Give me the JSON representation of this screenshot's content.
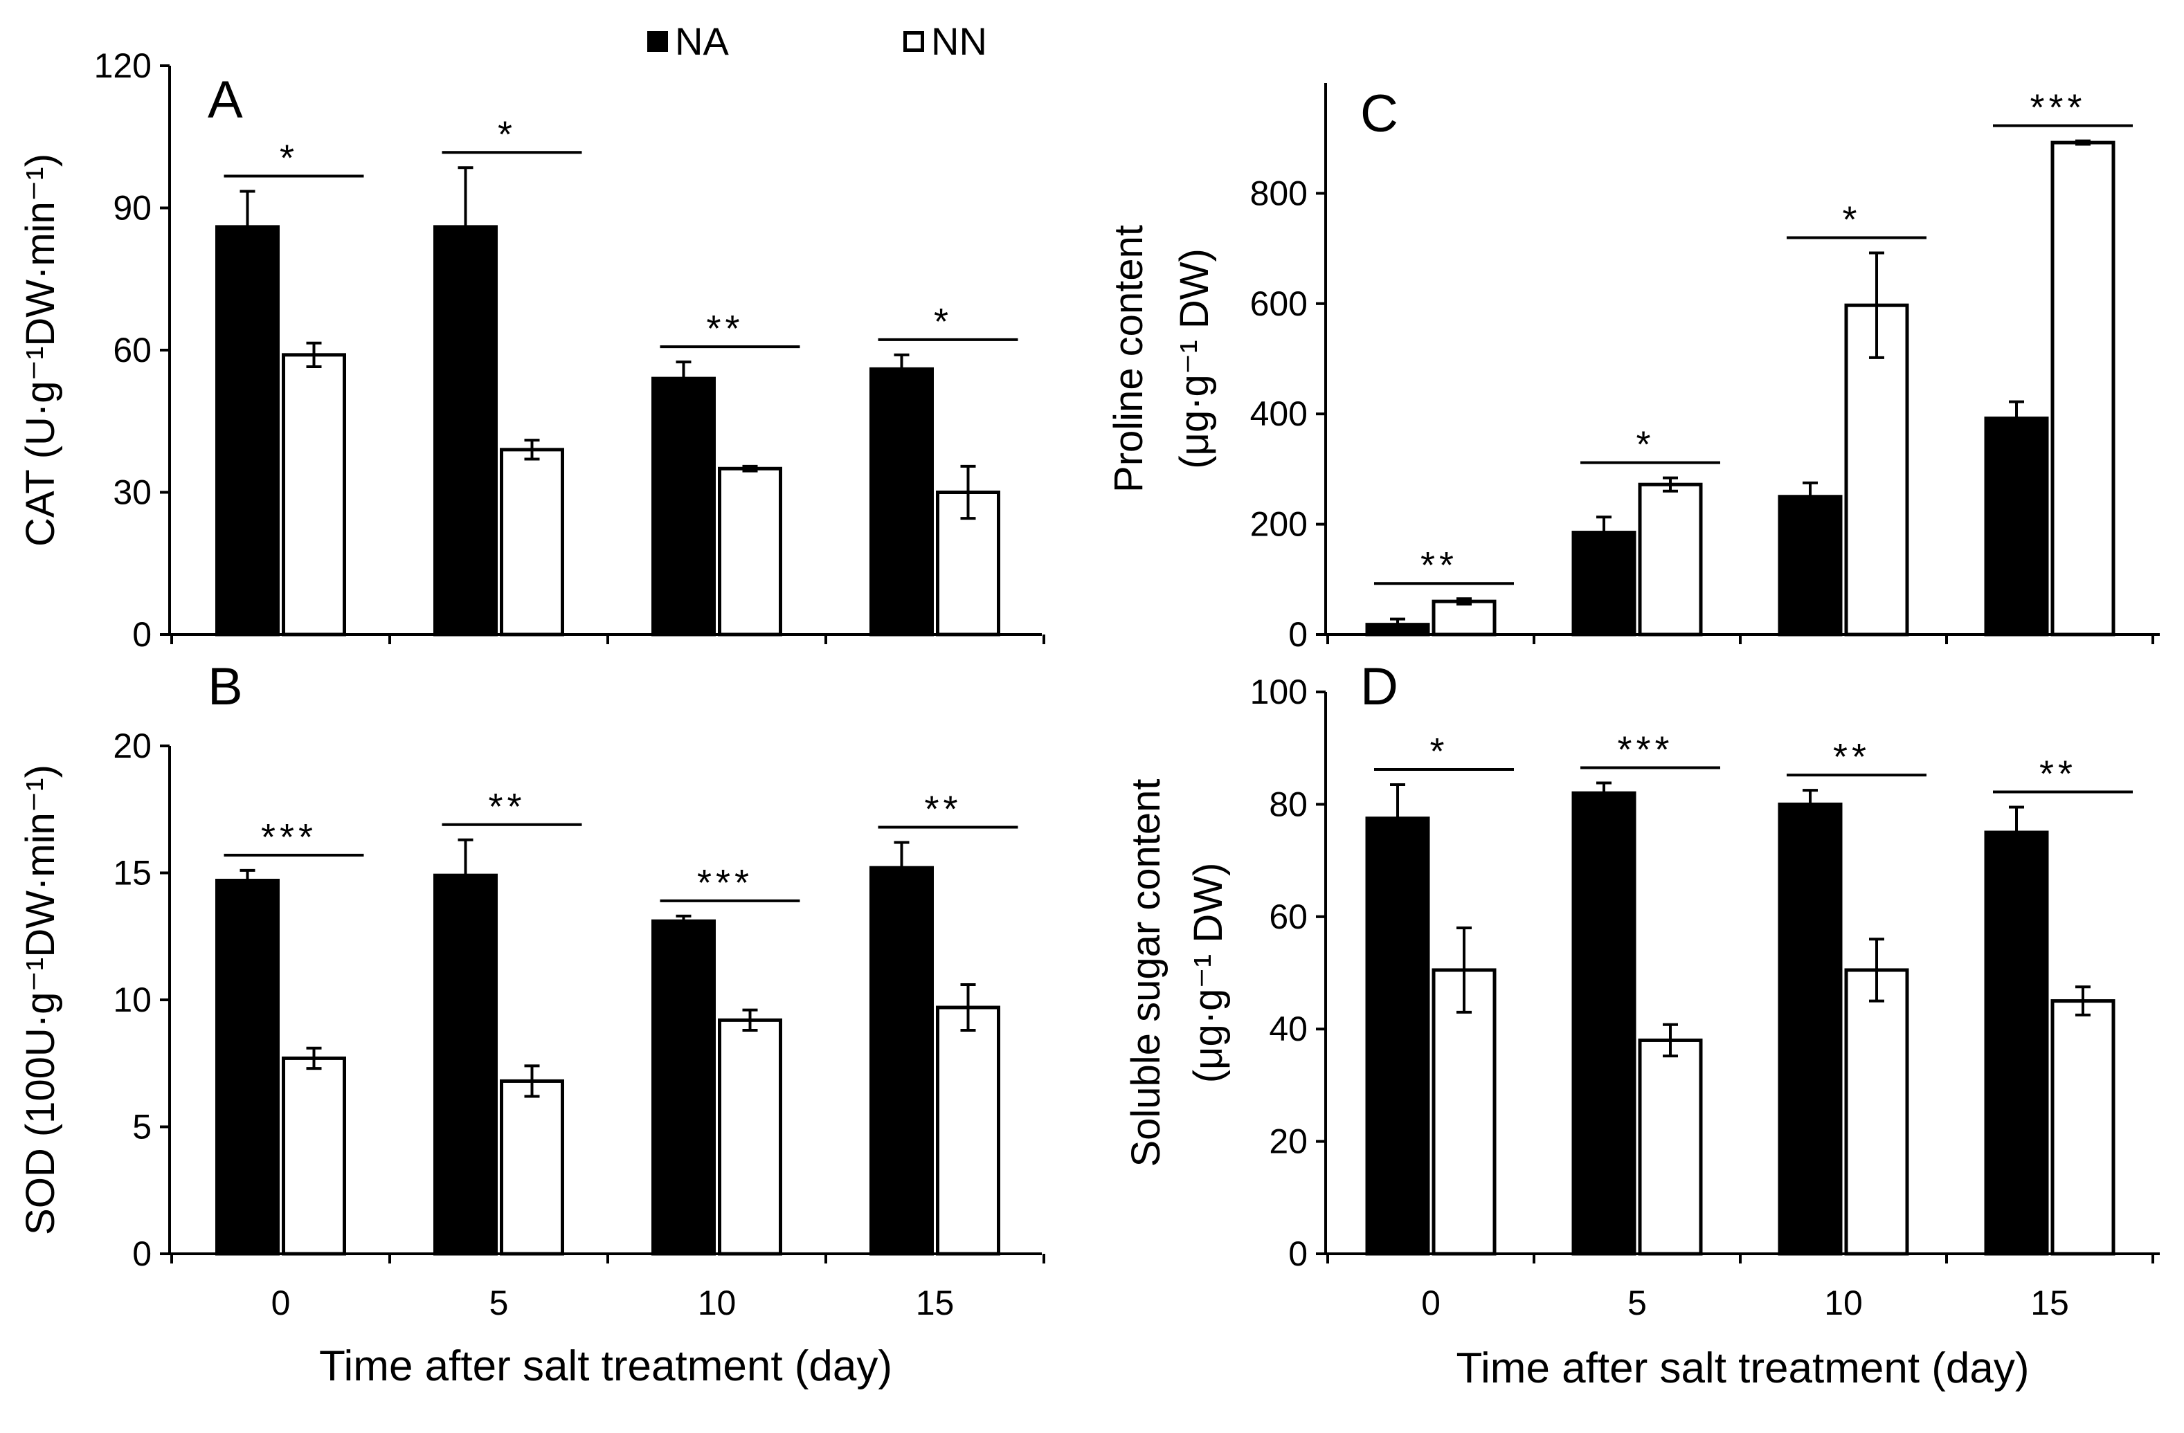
{
  "legend": {
    "items": [
      {
        "label": "NA",
        "fill": "#000000"
      },
      {
        "label": "NN",
        "fill": "#ffffff"
      }
    ]
  },
  "colors": {
    "NA": "#000000",
    "NN": "#ffffff",
    "axis": "#000000"
  },
  "chart_data": [
    {
      "panel": "A",
      "type": "bar",
      "title": "",
      "xlabel": "",
      "ylabel": "CAT (U·g⁻¹DW·min⁻¹)",
      "categories": [
        "0",
        "5",
        "10",
        "15"
      ],
      "ylim": [
        0,
        120
      ],
      "yticks": [
        "0",
        "30",
        "60",
        "90",
        "120"
      ],
      "series": [
        {
          "name": "NA",
          "values": [
            86,
            86,
            54,
            56
          ],
          "errors": [
            7.5,
            12.5,
            3.5,
            3
          ]
        },
        {
          "name": "NN",
          "values": [
            59,
            39,
            35,
            30
          ],
          "errors": [
            2.5,
            2,
            0.5,
            5.5
          ]
        }
      ],
      "significance": [
        "*",
        "*",
        "**",
        "*"
      ]
    },
    {
      "panel": "B",
      "type": "bar",
      "title": "",
      "xlabel": "Time after salt treatment (day)",
      "ylabel": "SOD (100U·g⁻¹DW·min⁻¹)",
      "categories": [
        "0",
        "5",
        "10",
        "15"
      ],
      "ylim": [
        0,
        20
      ],
      "yticks": [
        "0",
        "5",
        "10",
        "15",
        "20"
      ],
      "series": [
        {
          "name": "NA",
          "values": [
            14.7,
            14.9,
            13.1,
            15.2
          ],
          "errors": [
            0.4,
            1.4,
            0.2,
            1.0
          ]
        },
        {
          "name": "NN",
          "values": [
            7.7,
            6.8,
            9.2,
            9.7
          ],
          "errors": [
            0.4,
            0.6,
            0.4,
            0.9
          ]
        }
      ],
      "significance": [
        "***",
        "**",
        "***",
        "**"
      ]
    },
    {
      "panel": "C",
      "type": "bar",
      "title": "",
      "xlabel": "",
      "ylabel": "Proline content",
      "ylabel2": "(μg·g⁻¹ DW)",
      "categories": [
        "0",
        "5",
        "10",
        "15"
      ],
      "ylim": [
        0,
        1000
      ],
      "yticks": [
        "0",
        "200",
        "400",
        "600",
        "800"
      ],
      "series": [
        {
          "name": "NA",
          "values": [
            18,
            185,
            250,
            392
          ],
          "errors": [
            10,
            28,
            25,
            30
          ]
        },
        {
          "name": "NN",
          "values": [
            60,
            272,
            597,
            892
          ],
          "errors": [
            5,
            12,
            95,
            3
          ]
        }
      ],
      "significance": [
        "**",
        "*",
        "*",
        "***"
      ]
    },
    {
      "panel": "D",
      "type": "bar",
      "title": "",
      "xlabel": "Time after salt treatment (day)",
      "ylabel": "Soluble sugar content",
      "ylabel2": "(μg·g⁻¹ DW)",
      "categories": [
        "0",
        "5",
        "10",
        "15"
      ],
      "ylim": [
        0,
        100
      ],
      "yticks": [
        "0",
        "20",
        "40",
        "60",
        "80",
        "100"
      ],
      "series": [
        {
          "name": "NA",
          "values": [
            77.5,
            82,
            80,
            75
          ],
          "errors": [
            6,
            1.8,
            2.5,
            4.5
          ]
        },
        {
          "name": "NN",
          "values": [
            50.5,
            38,
            50.5,
            45
          ],
          "errors": [
            7.5,
            2.8,
            5.5,
            2.5
          ]
        }
      ],
      "significance": [
        "*",
        "***",
        "**",
        "**"
      ]
    }
  ]
}
